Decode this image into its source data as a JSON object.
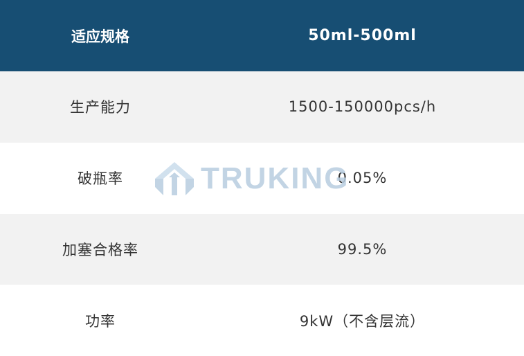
{
  "header": {
    "col1": "适应规格",
    "col2": "50ml-500ml"
  },
  "rows": [
    {
      "label": "生产能力",
      "value": "1500-150000pcs/h"
    },
    {
      "label": "破瓶率",
      "value": "0.05%"
    },
    {
      "label": "加塞合格率",
      "value": "99.5%"
    },
    {
      "label": "功率",
      "value": "9kW（不含层流）"
    }
  ],
  "watermark": {
    "text": "TRUKING",
    "icon": "truking-logo-icon"
  },
  "colors": {
    "header_bg": "#174e73",
    "stripe": "#f2f2f2",
    "watermark": "#b8cde0"
  }
}
